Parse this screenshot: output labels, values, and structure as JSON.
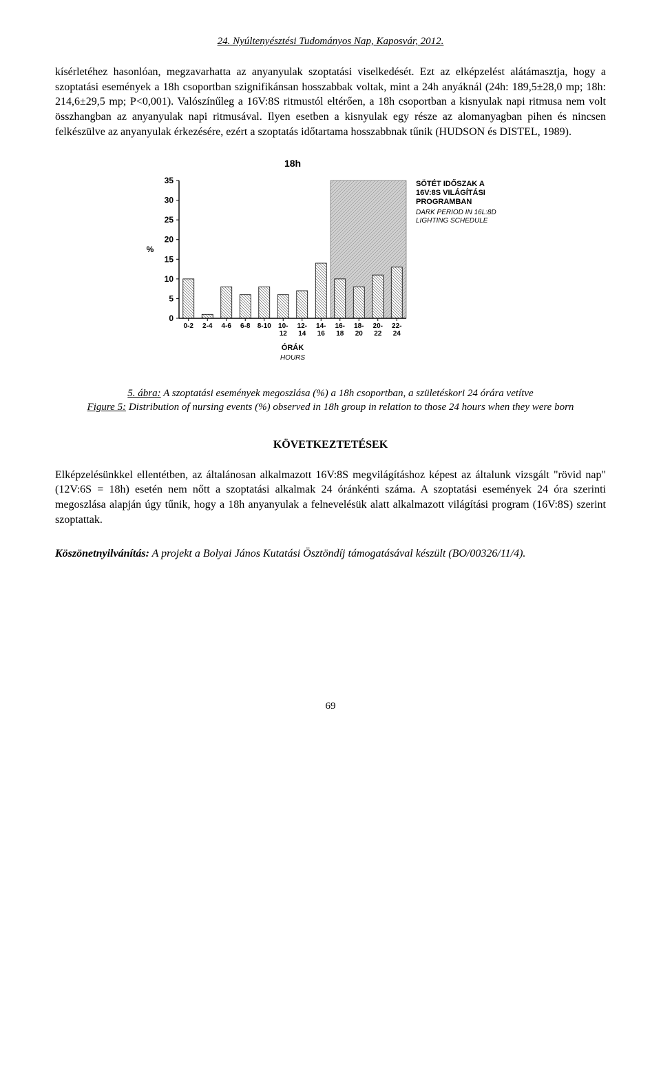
{
  "header": "24. Nyúltenyésztési Tudományos Nap, Kaposvár, 2012.",
  "para1": "kísérletéhez hasonlóan, megzavarhatta az anyanyulak szoptatási viselkedését. Ezt az elképzelést alátámasztja, hogy a szoptatási események a 18h csoportban szignifikánsan hosszabbak voltak, mint a 24h anyáknál (24h: 189,5±28,0 mp; 18h: 214,6±29,5 mp; P<0,001). Valószínűleg a 16V:8S ritmustól eltérően, a 18h csoportban a kisnyulak napi ritmusa nem volt összhangban az anyanyulak napi ritmusával. Ilyen esetben a kisnyulak egy része az alomanyagban pihen és nincsen felkészülve az anyanyulak érkezésére, ezért a szoptatás időtartama hosszabbnak tűnik (HUDSON és DISTEL, 1989).",
  "figure": {
    "type": "bar",
    "chart_title": "18h",
    "legend_lines_bold": [
      "SÖTÉT IDŐSZAK A",
      "16V:8S VILÁGÍTÁSI",
      "PROGRAMBAN"
    ],
    "legend_lines_italic": [
      "DARK PERIOD IN 16L:8D",
      "LIGHTING SCHEDULE"
    ],
    "y_label": "%",
    "x_label_top": "ÓRÁK",
    "x_label_bottom": "HOURS",
    "categories": [
      "0-2",
      "2-4",
      "4-6",
      "6-8",
      "8-10",
      "10-\n12",
      "12-\n14",
      "14-\n16",
      "16-\n18",
      "18-\n20",
      "20-\n22",
      "22-\n24"
    ],
    "values": [
      10,
      1,
      8,
      6,
      8,
      6,
      7,
      14,
      10,
      8,
      11,
      13
    ],
    "y_ticks": [
      0,
      5,
      10,
      15,
      20,
      25,
      30,
      35
    ],
    "ylim": [
      0,
      35
    ],
    "bar_fill": "#ffffff",
    "bar_hatch_color": "#4a4a4a",
    "axis_color": "#000000",
    "shade_fill": "#cfcfcf",
    "shade_hatch": "#7a7a7a",
    "shade_start_index": 8,
    "plot_bg": "#ffffff",
    "bar_width_rel": 0.58
  },
  "caption": {
    "row1_lead": "5. ábra:",
    "row1_body": " A szoptatási események megoszlása (%) a 18h csoportban, a születéskori 24 órára vetítve",
    "row2_lead": "Figure 5:",
    "row2_body": " Distribution of nursing events (%) observed in 18h group in relation to those 24 hours when they were born"
  },
  "section_heading": "KÖVETKEZTETÉSEK",
  "para2": "Elképzelésünkkel ellentétben, az általánosan alkalmazott 16V:8S megvilágításhoz képest az általunk vizsgált \"rövid nap\" (12V:6S = 18h) esetén nem nőtt a szoptatási alkalmak 24 óránkénti száma. A szoptatási események 24 óra szerinti megoszlása alapján úgy tűnik, hogy a 18h anyanyulak a felnevelésük alatt alkalmazott világítási program (16V:8S) szerint szoptattak.",
  "ack": {
    "lead": "Köszönetnyilvánítás:",
    "body": " A projekt a Bolyai János Kutatási Ösztöndíj támogatásával készült (BO/00326/11/4)."
  },
  "page_number": "69"
}
